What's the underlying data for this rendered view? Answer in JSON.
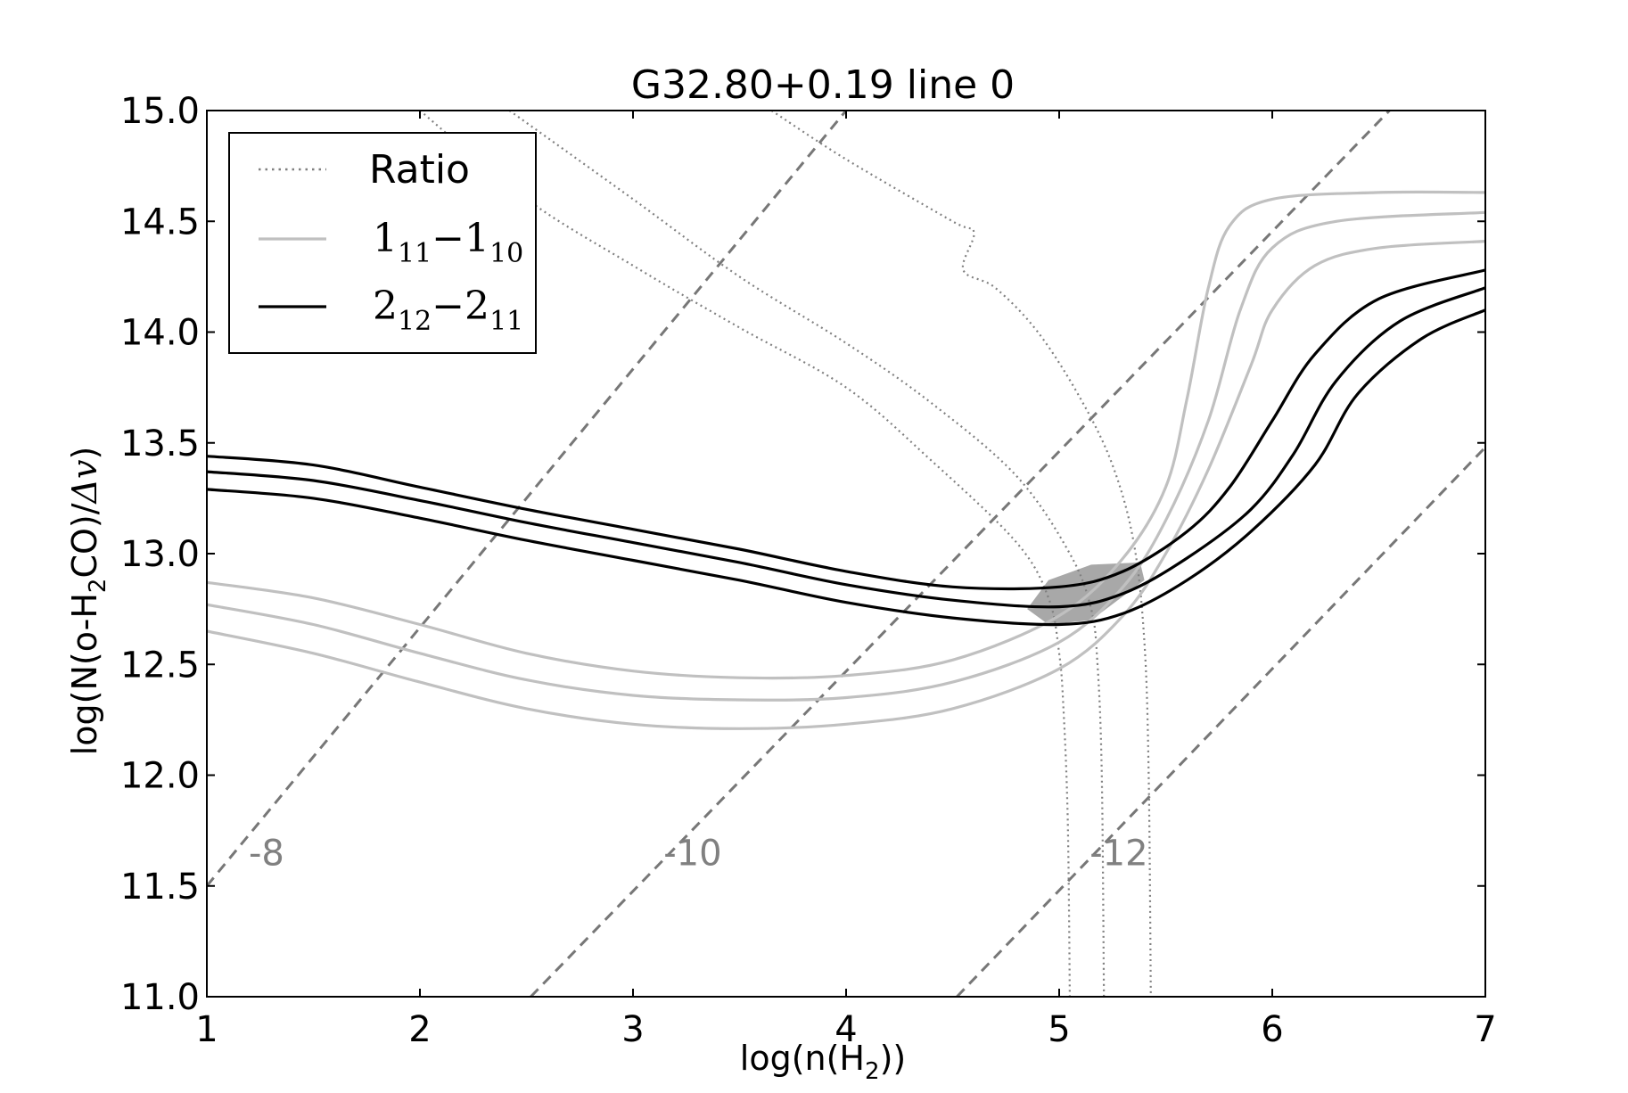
{
  "chart_data": {
    "type": "line",
    "title": "G32.80+0.19 line 0",
    "xlabel": {
      "pre": "log(n(H",
      "sub": "2",
      "post": "))"
    },
    "ylabel": {
      "pre": "log(N(o-H",
      "sub": "2",
      "post": "CO)/",
      "math": "Δv",
      "close": ")"
    },
    "xlim": [
      1,
      7
    ],
    "ylim": [
      11.0,
      15.0
    ],
    "x_ticks": [
      1,
      2,
      3,
      4,
      5,
      6,
      7
    ],
    "x_tick_labels": [
      "1",
      "2",
      "3",
      "4",
      "5",
      "6",
      "7"
    ],
    "y_ticks": [
      11.0,
      11.5,
      12.0,
      12.5,
      13.0,
      13.5,
      14.0,
      14.5,
      15.0
    ],
    "y_tick_labels": [
      "11.0",
      "11.5",
      "12.0",
      "12.5",
      "13.0",
      "13.5",
      "14.0",
      "14.5",
      "15.0"
    ],
    "grid": false,
    "legend": {
      "placement": "top-left",
      "entries": [
        {
          "label": "Ratio",
          "style": "dotted",
          "color": "#808080"
        },
        {
          "label_base": "1",
          "label_sub1": "11",
          "label_mid": "−1",
          "label_sub2": "10",
          "style": "solid",
          "color": "#c0c0c0"
        },
        {
          "label_base": "2",
          "label_sub1": "12",
          "label_mid": "−2",
          "label_sub2": "11",
          "style": "solid",
          "color": "#000000"
        }
      ]
    },
    "abundance_lines": {
      "color": "#777777",
      "style": "dashed",
      "labels": [
        "-8",
        "-10",
        "-12"
      ],
      "label_points": [
        [
          1.28,
          11.65
        ],
        [
          3.28,
          11.65
        ],
        [
          5.28,
          11.65
        ]
      ],
      "lines": [
        [
          [
            1.0,
            11.5
          ],
          [
            4.0,
            15.0
          ]
        ],
        [
          [
            2.52,
            11.0
          ],
          [
            6.55,
            15.0
          ]
        ],
        [
          [
            4.52,
            11.0
          ],
          [
            7.0,
            13.48
          ]
        ]
      ]
    },
    "series": [
      {
        "name": "Ratio",
        "color": "#808080",
        "style": "dotted",
        "width": 2.2,
        "lines": [
          [
            [
              2.0,
              15.0
            ],
            [
              2.5,
              14.6
            ],
            [
              3.0,
              14.3
            ],
            [
              3.5,
              14.02
            ],
            [
              4.0,
              13.75
            ],
            [
              4.4,
              13.42
            ],
            [
              4.8,
              13.05
            ],
            [
              4.95,
              12.8
            ],
            [
              5.0,
              12.55
            ],
            [
              5.02,
              12.3
            ],
            [
              5.04,
              11.8
            ],
            [
              5.05,
              11.0
            ]
          ],
          [
            [
              2.42,
              15.0
            ],
            [
              3.0,
              14.6
            ],
            [
              3.5,
              14.25
            ],
            [
              4.0,
              13.95
            ],
            [
              4.4,
              13.68
            ],
            [
              4.8,
              13.35
            ],
            [
              5.05,
              13.0
            ],
            [
              5.15,
              12.75
            ],
            [
              5.18,
              12.5
            ],
            [
              5.2,
              12.0
            ],
            [
              5.21,
              11.0
            ]
          ],
          [
            [
              3.65,
              15.0
            ],
            [
              4.0,
              14.78
            ],
            [
              4.5,
              14.5
            ],
            [
              4.6,
              14.45
            ],
            [
              4.55,
              14.28
            ],
            [
              4.7,
              14.2
            ],
            [
              4.9,
              14.0
            ],
            [
              5.1,
              13.7
            ],
            [
              5.25,
              13.4
            ],
            [
              5.35,
              13.05
            ],
            [
              5.4,
              12.6
            ],
            [
              5.42,
              12.0
            ],
            [
              5.43,
              11.0
            ]
          ]
        ]
      },
      {
        "name": "1_11-1_10",
        "color": "#c0c0c0",
        "style": "solid",
        "width": 3.2,
        "lines": [
          [
            [
              1.0,
              12.87
            ],
            [
              1.5,
              12.8
            ],
            [
              2.0,
              12.68
            ],
            [
              2.5,
              12.55
            ],
            [
              3.0,
              12.47
            ],
            [
              3.5,
              12.44
            ],
            [
              4.0,
              12.45
            ],
            [
              4.5,
              12.52
            ],
            [
              5.0,
              12.72
            ],
            [
              5.3,
              12.98
            ],
            [
              5.5,
              13.3
            ],
            [
              5.6,
              13.7
            ],
            [
              5.7,
              14.2
            ],
            [
              5.8,
              14.48
            ],
            [
              6.0,
              14.6
            ],
            [
              6.5,
              14.63
            ],
            [
              7.0,
              14.63
            ]
          ],
          [
            [
              1.0,
              12.77
            ],
            [
              1.5,
              12.68
            ],
            [
              2.0,
              12.55
            ],
            [
              2.5,
              12.43
            ],
            [
              3.0,
              12.36
            ],
            [
              3.5,
              12.34
            ],
            [
              4.0,
              12.35
            ],
            [
              4.5,
              12.42
            ],
            [
              5.0,
              12.6
            ],
            [
              5.3,
              12.85
            ],
            [
              5.5,
              13.15
            ],
            [
              5.7,
              13.6
            ],
            [
              5.85,
              14.1
            ],
            [
              6.0,
              14.38
            ],
            [
              6.3,
              14.5
            ],
            [
              7.0,
              14.54
            ]
          ],
          [
            [
              1.0,
              12.65
            ],
            [
              1.5,
              12.55
            ],
            [
              2.0,
              12.42
            ],
            [
              2.5,
              12.3
            ],
            [
              3.0,
              12.23
            ],
            [
              3.5,
              12.21
            ],
            [
              4.0,
              12.23
            ],
            [
              4.5,
              12.3
            ],
            [
              5.0,
              12.48
            ],
            [
              5.3,
              12.72
            ],
            [
              5.5,
              13.0
            ],
            [
              5.7,
              13.38
            ],
            [
              5.9,
              13.85
            ],
            [
              6.0,
              14.1
            ],
            [
              6.2,
              14.3
            ],
            [
              6.5,
              14.38
            ],
            [
              7.0,
              14.41
            ]
          ]
        ]
      },
      {
        "name": "2_12-2_11",
        "color": "#000000",
        "style": "solid",
        "width": 3.2,
        "lines": [
          [
            [
              1.0,
              13.44
            ],
            [
              1.5,
              13.4
            ],
            [
              2.0,
              13.3
            ],
            [
              2.5,
              13.2
            ],
            [
              3.0,
              13.11
            ],
            [
              3.5,
              13.02
            ],
            [
              4.0,
              12.92
            ],
            [
              4.5,
              12.85
            ],
            [
              5.0,
              12.85
            ],
            [
              5.3,
              12.92
            ],
            [
              5.6,
              13.1
            ],
            [
              5.8,
              13.3
            ],
            [
              6.0,
              13.6
            ],
            [
              6.2,
              13.9
            ],
            [
              6.5,
              14.15
            ],
            [
              7.0,
              14.28
            ]
          ],
          [
            [
              1.0,
              13.37
            ],
            [
              1.5,
              13.33
            ],
            [
              2.0,
              13.24
            ],
            [
              2.5,
              13.14
            ],
            [
              3.0,
              13.05
            ],
            [
              3.5,
              12.96
            ],
            [
              4.0,
              12.86
            ],
            [
              4.5,
              12.79
            ],
            [
              5.0,
              12.76
            ],
            [
              5.3,
              12.82
            ],
            [
              5.6,
              12.98
            ],
            [
              5.9,
              13.2
            ],
            [
              6.1,
              13.45
            ],
            [
              6.3,
              13.78
            ],
            [
              6.6,
              14.05
            ],
            [
              7.0,
              14.2
            ]
          ],
          [
            [
              1.0,
              13.29
            ],
            [
              1.5,
              13.25
            ],
            [
              2.0,
              13.16
            ],
            [
              2.5,
              13.06
            ],
            [
              3.0,
              12.97
            ],
            [
              3.5,
              12.88
            ],
            [
              4.0,
              12.78
            ],
            [
              4.5,
              12.71
            ],
            [
              5.0,
              12.68
            ],
            [
              5.3,
              12.73
            ],
            [
              5.6,
              12.88
            ],
            [
              5.9,
              13.1
            ],
            [
              6.2,
              13.4
            ],
            [
              6.4,
              13.72
            ],
            [
              6.7,
              13.97
            ],
            [
              7.0,
              14.1
            ]
          ]
        ]
      }
    ],
    "solution_region": {
      "color": "#999999",
      "polygon": [
        [
          4.85,
          12.75
        ],
        [
          4.95,
          12.88
        ],
        [
          5.15,
          12.95
        ],
        [
          5.38,
          12.96
        ],
        [
          5.4,
          12.88
        ],
        [
          5.15,
          12.7
        ],
        [
          4.95,
          12.68
        ]
      ]
    }
  }
}
